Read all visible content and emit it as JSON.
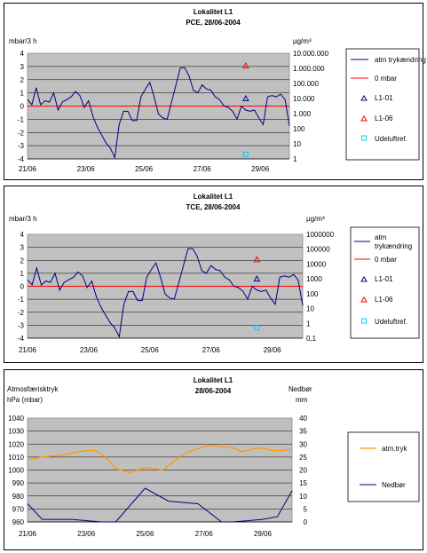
{
  "chart_data": [
    {
      "type": "line",
      "title": "Lokalitet L1",
      "subtitle": "PCE, 28/06-2004",
      "left_axis_label": "mbar/3 h",
      "right_axis_label": "µg/m³",
      "x_tick_labels": [
        "21/06",
        "23/06",
        "25/06",
        "27/06",
        "29/06"
      ],
      "x_range_days": [
        21,
        30
      ],
      "y_left_range": [
        -4,
        4
      ],
      "y_left_ticks": [
        "-4",
        "-3",
        "-2",
        "-1",
        "0",
        "1",
        "2",
        "3",
        "4"
      ],
      "y_right_ticks": [
        "1",
        "10",
        "100",
        "1.000",
        "10.000",
        "100.000",
        "1.000.000",
        "10.000.000"
      ],
      "y_right_scale": "log",
      "series": [
        {
          "name": "atm trykændring",
          "color": "#000080",
          "x": [
            21.0,
            21.15,
            21.3,
            21.45,
            21.6,
            21.75,
            21.9,
            22.05,
            22.2,
            22.35,
            22.5,
            22.65,
            22.8,
            22.95,
            23.1,
            23.25,
            23.4,
            23.55,
            23.7,
            23.85,
            24.0,
            24.15,
            24.3,
            24.45,
            24.6,
            24.75,
            24.9,
            25.05,
            25.2,
            25.35,
            25.5,
            25.65,
            25.8,
            25.95,
            26.1,
            26.25,
            26.4,
            26.55,
            26.7,
            26.85,
            27.0,
            27.15,
            27.3,
            27.45,
            27.6,
            27.75,
            27.9,
            28.05,
            28.2,
            28.35,
            28.5,
            28.65,
            28.8,
            28.95,
            29.1,
            29.25,
            29.4,
            29.55,
            29.7,
            29.85,
            30.0
          ],
          "values": [
            0.5,
            0.1,
            1.4,
            0.1,
            0.4,
            0.3,
            1.0,
            -0.3,
            0.3,
            0.5,
            0.7,
            1.1,
            0.8,
            -0.1,
            0.4,
            -0.8,
            -1.6,
            -2.2,
            -2.8,
            -3.2,
            -3.9,
            -1.4,
            -0.4,
            -0.4,
            -1.1,
            -1.1,
            0.7,
            1.3,
            1.8,
            0.7,
            -0.6,
            -0.9,
            -1.0,
            0.3,
            1.6,
            2.9,
            2.9,
            2.3,
            1.2,
            1.0,
            1.6,
            1.3,
            1.2,
            0.7,
            0.5,
            0,
            -0.1,
            -0.4,
            -1.0,
            0.0,
            -0.3,
            -0.4,
            -0.3,
            -0.9,
            -1.4,
            0.7,
            0.8,
            0.7,
            0.9,
            0.5,
            -1.5
          ]
        },
        {
          "name": "0 mbar",
          "color": "#ff0000",
          "values": [
            0
          ]
        }
      ],
      "points": [
        {
          "name": "L1-01",
          "color": "#000080",
          "marker": "triangle",
          "x": 28.5,
          "ug_m3": 10000
        },
        {
          "name": "L1-06",
          "color": "#ff0000",
          "marker": "triangle",
          "x": 28.5,
          "ug_m3": 1500000
        },
        {
          "name": "Udeluftref.",
          "color": "#00ccff",
          "marker": "square",
          "x": 28.5,
          "ug_m3": 2
        }
      ]
    },
    {
      "type": "line",
      "title": "Lokalitet L1",
      "subtitle": "TCE, 28/06-2004",
      "left_axis_label": "mbar/3 h",
      "right_axis_label": "µg/m³",
      "x_tick_labels": [
        "21/06",
        "23/06",
        "25/06",
        "27/06",
        "29/06"
      ],
      "x_range_days": [
        21,
        30
      ],
      "y_left_range": [
        -4,
        4
      ],
      "y_left_ticks": [
        "-4",
        "-3",
        "-2",
        "-1",
        "0",
        "1",
        "2",
        "3",
        "4"
      ],
      "y_right_ticks": [
        "0,1",
        "1",
        "10",
        "100",
        "1000",
        "10000",
        "100000",
        "1000000"
      ],
      "y_right_scale": "log",
      "series": [
        {
          "name": "atm trykændring",
          "color": "#000080",
          "x": [
            21.0,
            21.15,
            21.3,
            21.45,
            21.6,
            21.75,
            21.9,
            22.05,
            22.2,
            22.35,
            22.5,
            22.65,
            22.8,
            22.95,
            23.1,
            23.25,
            23.4,
            23.55,
            23.7,
            23.85,
            24.0,
            24.15,
            24.3,
            24.45,
            24.6,
            24.75,
            24.9,
            25.05,
            25.2,
            25.35,
            25.5,
            25.65,
            25.8,
            25.95,
            26.1,
            26.25,
            26.4,
            26.55,
            26.7,
            26.85,
            27.0,
            27.15,
            27.3,
            27.45,
            27.6,
            27.75,
            27.9,
            28.05,
            28.2,
            28.35,
            28.5,
            28.65,
            28.8,
            28.95,
            29.1,
            29.25,
            29.4,
            29.55,
            29.7,
            29.85,
            30.0
          ],
          "values": [
            0.5,
            0.1,
            1.4,
            0.1,
            0.4,
            0.3,
            1.0,
            -0.3,
            0.3,
            0.5,
            0.7,
            1.1,
            0.8,
            -0.1,
            0.4,
            -0.8,
            -1.6,
            -2.2,
            -2.8,
            -3.2,
            -3.9,
            -1.4,
            -0.4,
            -0.4,
            -1.1,
            -1.1,
            0.7,
            1.3,
            1.8,
            0.7,
            -0.6,
            -0.9,
            -1.0,
            0.3,
            1.6,
            2.9,
            2.9,
            2.3,
            1.2,
            1.0,
            1.6,
            1.3,
            1.2,
            0.7,
            0.5,
            0,
            -0.1,
            -0.4,
            -1.0,
            0.0,
            -0.3,
            -0.4,
            -0.3,
            -0.9,
            -1.4,
            0.7,
            0.8,
            0.7,
            0.9,
            0.5,
            -1.5
          ]
        },
        {
          "name": "0 mbar",
          "color": "#ff0000",
          "values": [
            0
          ]
        }
      ],
      "points": [
        {
          "name": "L1-01",
          "color": "#000080",
          "marker": "triangle",
          "x": 28.5,
          "ug_m3": 1000
        },
        {
          "name": "L1-06",
          "color": "#ff0000",
          "marker": "triangle",
          "x": 28.5,
          "ug_m3": 20000
        },
        {
          "name": "Udeluftref.",
          "color": "#00ccff",
          "marker": "square",
          "x": 28.5,
          "ug_m3": 0.5
        }
      ]
    },
    {
      "type": "line",
      "title": "Lokalitet L1",
      "subtitle": "28/06-2004",
      "left_axis_label_1": "Atmosfærisktryk",
      "left_axis_label_2": "hPa (mbar)",
      "right_axis_label_1": "Nedbør",
      "right_axis_label_2": "mm",
      "x_tick_labels": [
        "21/06",
        "23/06",
        "25/06",
        "27/06",
        "29/06"
      ],
      "x_range_days": [
        21,
        30
      ],
      "y_left_range": [
        960,
        1040
      ],
      "y_left_ticks": [
        "960",
        "970",
        "980",
        "990",
        "1000",
        "1010",
        "1020",
        "1030",
        "1040"
      ],
      "y_right_range": [
        0,
        40
      ],
      "y_right_ticks": [
        "0",
        "5",
        "10",
        "15",
        "20",
        "25",
        "30",
        "35",
        "40"
      ],
      "series": [
        {
          "name": "atm.tryk",
          "color": "#ff9900",
          "axis": "left",
          "x": [
            21.0,
            21.5,
            22.0,
            22.5,
            23.0,
            23.3,
            23.6,
            24.0,
            24.5,
            25.0,
            25.3,
            25.6,
            26.0,
            26.3,
            26.6,
            27.0,
            27.3,
            27.6,
            28.0,
            28.3,
            28.6,
            29.0,
            29.3,
            29.6,
            30.0
          ],
          "values": [
            1008,
            1010,
            1011,
            1013,
            1015,
            1015,
            1011,
            1001,
            998,
            1002,
            1001,
            1000,
            1007,
            1012,
            1015,
            1018,
            1019,
            1018,
            1017,
            1014,
            1016,
            1017,
            1015,
            1015,
            1016
          ]
        },
        {
          "name": "Nedbør",
          "color": "#000080",
          "axis": "right",
          "x": [
            21.0,
            21.5,
            22.5,
            23.5,
            24.0,
            25.0,
            25.8,
            26.8,
            27.6,
            28.0,
            29.0,
            29.5,
            30.0
          ],
          "values": [
            7,
            1,
            1,
            0,
            0,
            13,
            8,
            7,
            0,
            0,
            1,
            2,
            12
          ]
        }
      ]
    }
  ]
}
